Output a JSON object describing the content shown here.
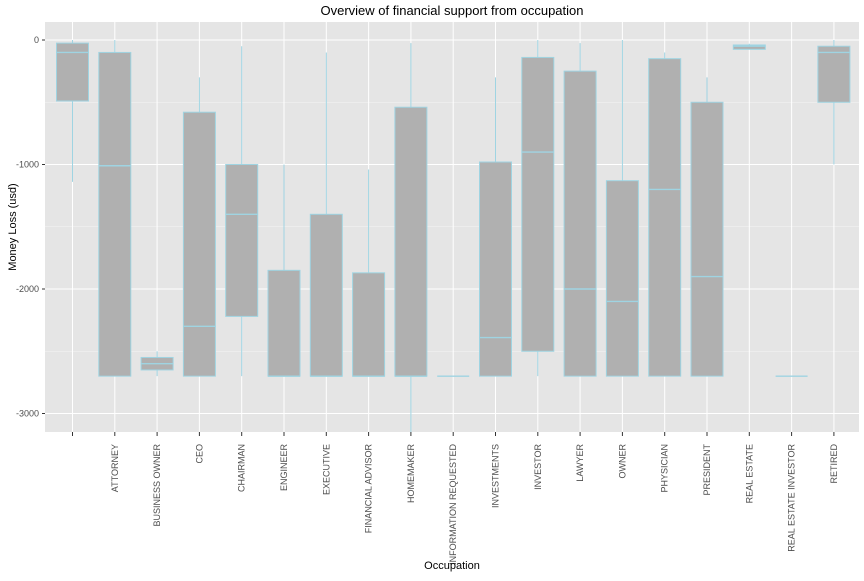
{
  "chart_data": {
    "type": "box",
    "title": "Overview of financial support from occupation",
    "xlabel": "Occupation",
    "ylabel": "Money Loss (usd)",
    "ylim": [
      -3150,
      80
    ],
    "yticks": [
      0,
      -1000,
      -2000,
      -3000
    ],
    "ytick_labels": [
      "0",
      "-1000",
      "-2000",
      "-3000"
    ],
    "grid": true,
    "colors": {
      "panel": "#e5e5e5",
      "grid": "#ffffff",
      "box_fill": "#b0b0b0",
      "box_line": "#9fd4e2",
      "text": "#4d4d4d"
    },
    "categories": [
      "",
      "ATTORNEY",
      "BUSINESS OWNER",
      "CEO",
      "CHAIRMAN",
      "ENGINEER",
      "EXECUTIVE",
      "FINANCIAL ADVISOR",
      "HOMEMAKER",
      "INFORMATION REQUESTED",
      "INVESTMENTS",
      "INVESTOR",
      "LAWYER",
      "OWNER",
      "PHYSICIAN",
      "PRESIDENT",
      "REAL ESTATE",
      "REAL ESTATE INVESTOR",
      "RETIRED"
    ],
    "boxes": [
      {
        "min": -1140,
        "q1": -490,
        "median": -100,
        "q3": -25,
        "max": 0
      },
      {
        "min": -2700,
        "q1": -2700,
        "median": -1010,
        "q3": -100,
        "max": 0
      },
      {
        "min": -2700,
        "q1": -2650,
        "median": -2600,
        "q3": -2550,
        "max": -2500
      },
      {
        "min": -2700,
        "q1": -2700,
        "median": -2300,
        "q3": -580,
        "max": -300
      },
      {
        "min": -2700,
        "q1": -2220,
        "median": -1400,
        "q3": -1000,
        "max": -50
      },
      {
        "min": -2700,
        "q1": -2700,
        "median": -2700,
        "q3": -1850,
        "max": -1000
      },
      {
        "min": -2700,
        "q1": -2700,
        "median": -2700,
        "q3": -1400,
        "max": -100
      },
      {
        "min": -2700,
        "q1": -2700,
        "median": -2700,
        "q3": -1870,
        "max": -1040
      },
      {
        "min": -3150,
        "q1": -2700,
        "median": -2700,
        "q3": -540,
        "max": -25
      },
      {
        "min": -2700,
        "q1": -2700,
        "median": -2700,
        "q3": -2700,
        "max": -2700
      },
      {
        "min": -2700,
        "q1": -2700,
        "median": -2390,
        "q3": -980,
        "max": -300
      },
      {
        "min": -2700,
        "q1": -2500,
        "median": -900,
        "q3": -140,
        "max": 0
      },
      {
        "min": -2700,
        "q1": -2700,
        "median": -2000,
        "q3": -250,
        "max": -25
      },
      {
        "min": -2700,
        "q1": -2700,
        "median": -2100,
        "q3": -1130,
        "max": 0
      },
      {
        "min": -2700,
        "q1": -2700,
        "median": -1200,
        "q3": -150,
        "max": -100
      },
      {
        "min": -2700,
        "q1": -2700,
        "median": -1900,
        "q3": -500,
        "max": -300
      },
      {
        "min": -75,
        "q1": -75,
        "median": -50,
        "q3": -40,
        "max": -30
      },
      {
        "min": -2700,
        "q1": -2700,
        "median": -2700,
        "q3": -2700,
        "max": -2700
      },
      {
        "min": -1000,
        "q1": -500,
        "median": -100,
        "q3": -50,
        "max": 0
      }
    ]
  }
}
